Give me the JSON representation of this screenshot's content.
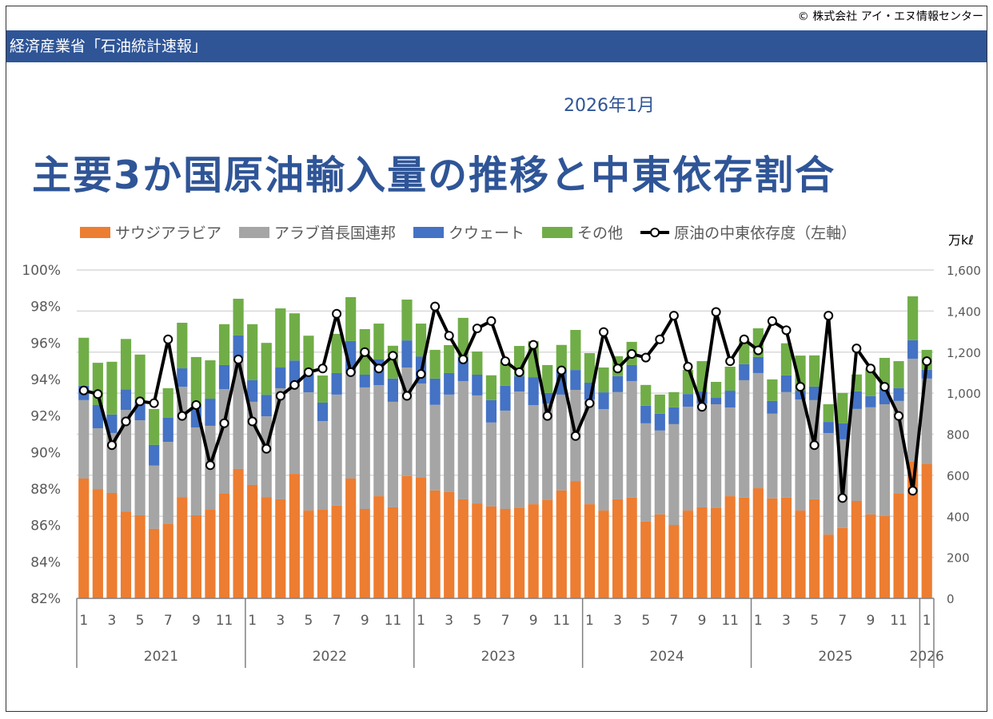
{
  "copyright": "© 株式会社 アイ・エヌ情報センター",
  "header": "経済産業省「石油統計速報」",
  "date": "2026年1月",
  "title": "主要3か国原油輸入量の推移と中東依存割合",
  "chart_data": {
    "type": "bar",
    "stacked": true,
    "title": "主要3か国原油輸入量の推移と中東依存割合",
    "y_right_label": "万kℓ",
    "y_right_range": [
      0,
      1600
    ],
    "y_right_ticks": [
      "0",
      "200",
      "400",
      "600",
      "800",
      "1,000",
      "1,200",
      "1,400",
      "1,600"
    ],
    "y_left_range": [
      82,
      100
    ],
    "y_left_ticks": [
      "82%",
      "84%",
      "86%",
      "88%",
      "90%",
      "92%",
      "94%",
      "96%",
      "98%",
      "100%"
    ],
    "grid": true,
    "legend_position": "top",
    "years": [
      {
        "label": "2021",
        "months": 12
      },
      {
        "label": "2022",
        "months": 12
      },
      {
        "label": "2023",
        "months": 12
      },
      {
        "label": "2024",
        "months": 12
      },
      {
        "label": "2025",
        "months": 12
      },
      {
        "label": "2026",
        "months": 1
      }
    ],
    "month_labels": [
      "1",
      "",
      "3",
      "",
      "5",
      "",
      "7",
      "",
      "9",
      "",
      "11",
      ""
    ],
    "colors": {
      "saudi": "#ED7D31",
      "uae": "#A5A5A5",
      "kuwait": "#4472C4",
      "other": "#70AD47",
      "line": "#000000"
    },
    "series": [
      {
        "name": "サウジアラビア",
        "key": "saudi",
        "axis": "right",
        "values": [
          584,
          533,
          514,
          424,
          405,
          339,
          362,
          494,
          405,
          432,
          510,
          631,
          553,
          494,
          483,
          607,
          428,
          432,
          452,
          584,
          436,
          498,
          444,
          596,
          588,
          526,
          518,
          483,
          463,
          448,
          436,
          440,
          459,
          479,
          526,
          572,
          459,
          428,
          483,
          491,
          374,
          409,
          358,
          428,
          444,
          440,
          498,
          491,
          537,
          487,
          491,
          428,
          483,
          311,
          343,
          475,
          409,
          401,
          510,
          666,
          654
        ]
      },
      {
        "name": "アラブ首長国連邦",
        "key": "uae",
        "axis": "right",
        "values": [
          382,
          296,
          292,
          494,
          463,
          308,
          401,
          537,
          428,
          409,
          510,
          541,
          405,
          393,
          541,
          424,
          576,
          432,
          541,
          514,
          592,
          541,
          514,
          529,
          459,
          417,
          475,
          576,
          526,
          409,
          479,
          568,
          483,
          471,
          467,
          444,
          510,
          494,
          522,
          568,
          479,
          409,
          491,
          506,
          506,
          506,
          432,
          572,
          561,
          413,
          514,
          541,
          483,
          494,
          432,
          448,
          522,
          545,
          452,
          502,
          417
        ]
      },
      {
        "name": "クウェート",
        "key": "kuwait",
        "axis": "right",
        "values": [
          70,
          113,
          90,
          101,
          90,
          101,
          117,
          90,
          109,
          132,
          117,
          109,
          105,
          105,
          101,
          128,
          93,
          90,
          105,
          156,
          62,
          125,
          113,
          132,
          132,
          128,
          105,
          117,
          101,
          109,
          121,
          74,
          136,
          51,
          121,
          97,
          82,
          82,
          78,
          78,
          86,
          82,
          82,
          62,
          58,
          31,
          82,
          78,
          78,
          62,
          82,
          43,
          66,
          55,
          78,
          86,
          55,
          74,
          62,
          90,
          43
        ]
      },
      {
        "name": "その他",
        "key": "other",
        "axis": "right",
        "values": [
          234,
          206,
          257,
          245,
          230,
          175,
          144,
          222,
          234,
          187,
          199,
          179,
          273,
          253,
          288,
          230,
          183,
          132,
          191,
          214,
          222,
          175,
          160,
          199,
          160,
          140,
          136,
          191,
          113,
          121,
          117,
          148,
          175,
          136,
          121,
          195,
          144,
          121,
          97,
          113,
          101,
          93,
          74,
          117,
          148,
          78,
          117,
          121,
          140,
          105,
          156,
          171,
          152,
          86,
          148,
          82,
          136,
          152,
          132,
          214,
          97
        ]
      },
      {
        "name": "原油の中東依存度（左軸）",
        "key": "line",
        "type": "line",
        "axis": "left",
        "unit": "%",
        "values": [
          93.4,
          93.2,
          90.4,
          91.7,
          92.8,
          92.7,
          96.2,
          92.0,
          92.6,
          89.3,
          91.6,
          95.1,
          91.7,
          90.2,
          93.1,
          93.7,
          94.4,
          94.6,
          97.6,
          94.4,
          95.5,
          94.6,
          95.3,
          93.1,
          94.3,
          98.0,
          96.4,
          95.1,
          96.8,
          97.2,
          95.0,
          94.4,
          95.9,
          92.0,
          94.5,
          90.9,
          92.7,
          96.6,
          94.6,
          95.4,
          95.2,
          96.2,
          97.5,
          94.7,
          92.5,
          97.7,
          95.0,
          96.2,
          95.6,
          97.2,
          96.7,
          93.6,
          90.4,
          97.5,
          87.5,
          95.7,
          94.6,
          93.6,
          92.0,
          87.9,
          95.0
        ]
      }
    ]
  }
}
